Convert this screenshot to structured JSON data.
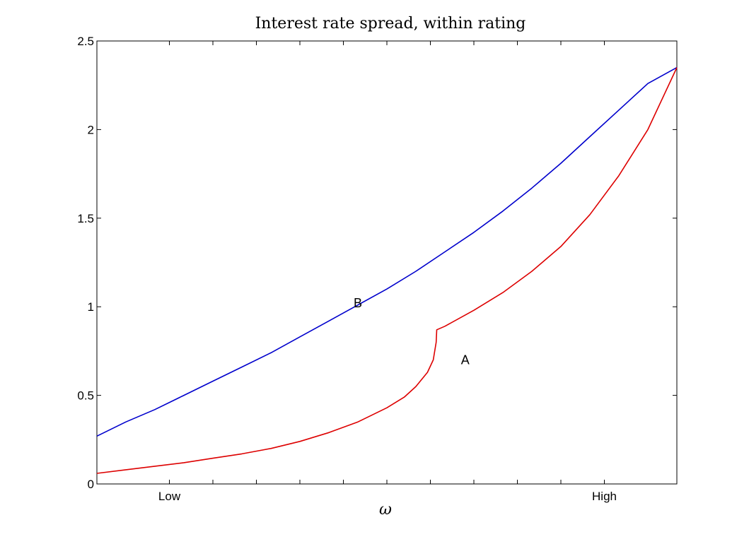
{
  "chart_data": {
    "type": "line",
    "title": "Interest rate spread, within rating",
    "xlabel": "ω",
    "ylabel": "",
    "xlim": [
      0,
      1
    ],
    "ylim": [
      0,
      2.5
    ],
    "yticks": [
      0,
      0.5,
      1,
      1.5,
      2,
      2.5
    ],
    "ytick_labels": [
      "0",
      "0.5",
      "1",
      "1.5",
      "2",
      "2.5"
    ],
    "xtick_labels": [
      {
        "x": 0.125,
        "label": "Low"
      },
      {
        "x": 0.875,
        "label": "High"
      }
    ],
    "minor_xticks": [
      0.2,
      0.275,
      0.35,
      0.425,
      0.5,
      0.575,
      0.65,
      0.725,
      0.8
    ],
    "grid": false,
    "series": [
      {
        "name": "B",
        "color": "#0000cc",
        "x": [
          0,
          0.05,
          0.1,
          0.15,
          0.2,
          0.25,
          0.3,
          0.35,
          0.4,
          0.45,
          0.5,
          0.55,
          0.6,
          0.65,
          0.7,
          0.75,
          0.8,
          0.85,
          0.9,
          0.95,
          1
        ],
        "values": [
          0.27,
          0.35,
          0.42,
          0.5,
          0.58,
          0.66,
          0.74,
          0.83,
          0.92,
          1.01,
          1.1,
          1.2,
          1.31,
          1.42,
          1.54,
          1.67,
          1.81,
          1.96,
          2.11,
          2.26,
          2.35
        ]
      },
      {
        "name": "A",
        "color": "#dd0000",
        "x": [
          0,
          0.05,
          0.1,
          0.15,
          0.2,
          0.25,
          0.3,
          0.35,
          0.4,
          0.45,
          0.5,
          0.53,
          0.55,
          0.57,
          0.58,
          0.585,
          0.586,
          0.6,
          0.65,
          0.7,
          0.75,
          0.8,
          0.85,
          0.9,
          0.95,
          1
        ],
        "values": [
          0.06,
          0.08,
          0.1,
          0.12,
          0.145,
          0.17,
          0.2,
          0.24,
          0.29,
          0.35,
          0.43,
          0.49,
          0.55,
          0.63,
          0.7,
          0.8,
          0.87,
          0.89,
          0.98,
          1.08,
          1.2,
          1.34,
          1.52,
          1.74,
          2.0,
          2.35
        ]
      }
    ],
    "annotations": [
      {
        "text": "B",
        "x": 0.45,
        "y": 1.02
      },
      {
        "text": "A",
        "x": 0.635,
        "y": 0.7
      }
    ]
  }
}
